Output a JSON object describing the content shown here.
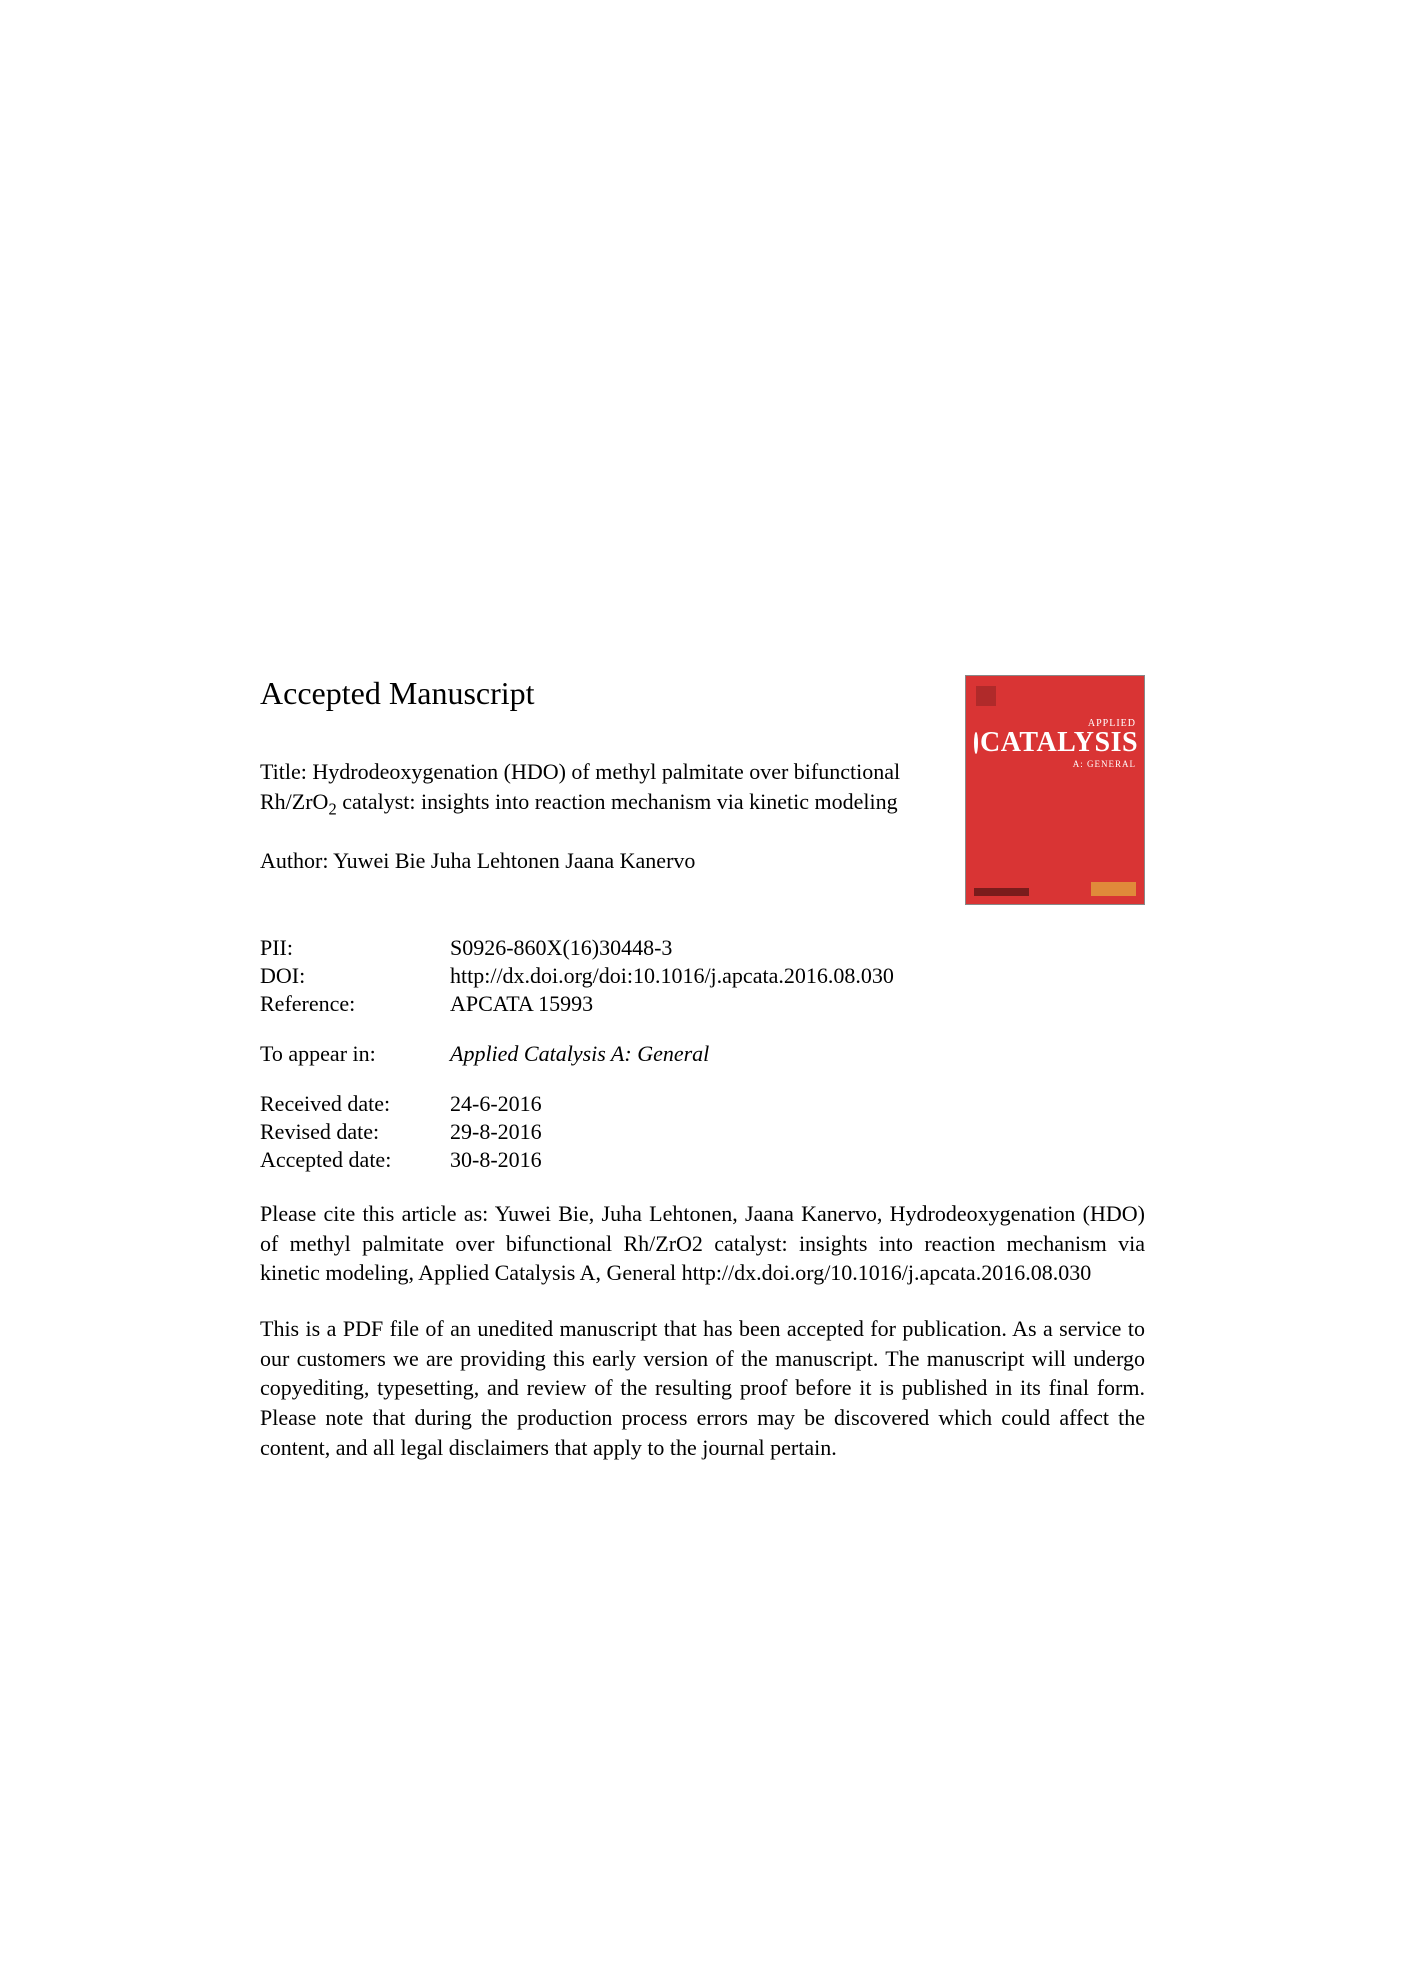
{
  "heading": "Accepted Manuscript",
  "title_prefix": "Title: Hydrodeoxygenation (HDO) of methyl palmitate over bifunctional Rh/ZrO",
  "title_sub": "2",
  "title_suffix": " catalyst: insights into reaction mechanism via kinetic modeling",
  "author_line": "Author:  Yuwei Bie Juha Lehtonen Jaana Kanervo",
  "cover": {
    "applied": "APPLIED",
    "catalysis": "CATALYSIS",
    "ageneral": "A: GENERAL",
    "bg_color": "#d93434"
  },
  "meta": {
    "pii_label": "PII:",
    "pii_value": "S0926-860X(16)30448-3",
    "doi_label": "DOI:",
    "doi_value": "http://dx.doi.org/doi:10.1016/j.apcata.2016.08.030",
    "ref_label": "Reference:",
    "ref_value": "APCATA 15993",
    "appear_label": "To appear in:",
    "appear_value": "Applied Catalysis A: General",
    "received_label": "Received date:",
    "received_value": "24-6-2016",
    "revised_label": "Revised date:",
    "revised_value": "29-8-2016",
    "accepted_label": "Accepted date:",
    "accepted_value": "30-8-2016"
  },
  "citation": "Please cite this article as: Yuwei Bie, Juha Lehtonen, Jaana Kanervo, Hydrodeoxygenation (HDO) of methyl palmitate over bifunctional Rh/ZrO2 catalyst: insights into reaction mechanism via kinetic modeling, Applied Catalysis A, General http://dx.doi.org/10.1016/j.apcata.2016.08.030",
  "disclaimer": "This is a PDF file of an unedited manuscript that has been accepted for publication. As a service to our customers we are providing this early version of the manuscript. The manuscript will undergo copyediting, typesetting, and review of the resulting proof before it is published in its final form. Please note that during the production process errors may be discovered which could affect the content, and all legal disclaimers that apply to the journal pertain."
}
